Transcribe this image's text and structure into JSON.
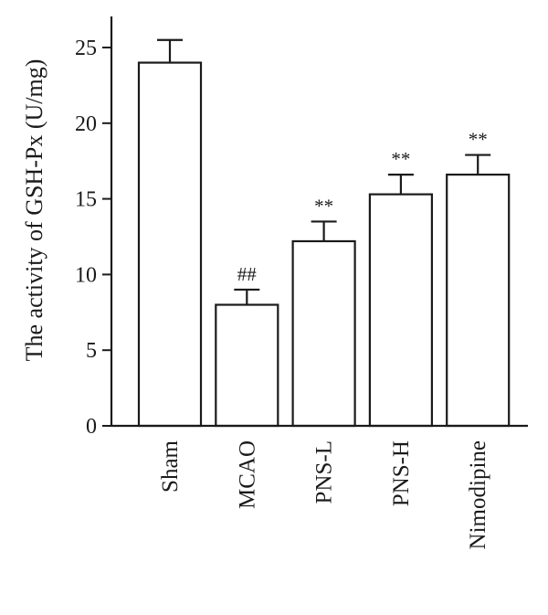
{
  "chart_data": {
    "type": "bar",
    "title": "",
    "xlabel": "",
    "ylabel": "The activity of GSH-Px (U/mg)",
    "ylim": [
      0,
      25
    ],
    "yticks": [
      0,
      5,
      10,
      15,
      20,
      25
    ],
    "grid": false,
    "categories": [
      "Sham",
      "MCAO",
      "PNS-L",
      "PNS-H",
      "Nimodipine"
    ],
    "values": [
      24.0,
      8.0,
      12.2,
      15.3,
      16.6
    ],
    "errors": [
      1.5,
      1.0,
      1.3,
      1.3,
      1.3
    ],
    "annotations": [
      "",
      "##",
      "**",
      "**",
      "**"
    ]
  }
}
